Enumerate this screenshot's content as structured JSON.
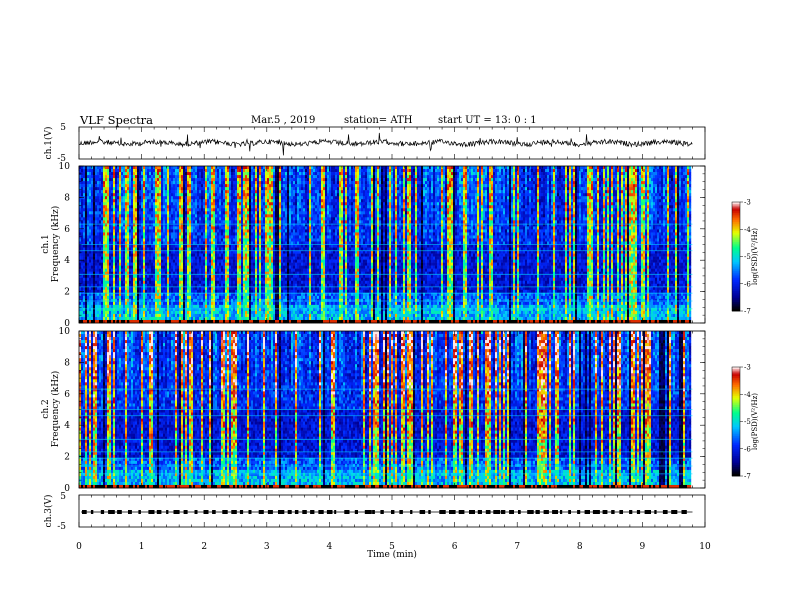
{
  "header": {
    "title": "VLF  Spectra",
    "date": "Mar.5  , 2019",
    "station": "station= ATH",
    "start_ut": "start  UT  =   13: 0  : 1"
  },
  "chart_data": [
    {
      "type": "line",
      "panel": "ch1-waveform",
      "ylabel": "ch.1(V)",
      "ylim": [
        -5,
        5
      ],
      "yticks": [
        "5",
        "-5"
      ],
      "color": "#000000",
      "x_range": [
        0,
        9.8
      ],
      "baseline": 0
    },
    {
      "type": "heatmap",
      "panel": "ch1-spectrogram",
      "ylabel": "ch.1\nFrequency  (kHz)",
      "ylabel_lines": [
        "ch.1",
        "Frequency  (kHz)"
      ],
      "ylim": [
        0,
        10
      ],
      "yticks": [
        "0",
        "2",
        "4",
        "6",
        "8",
        "10"
      ],
      "x_range": [
        0,
        9.8
      ],
      "colorbar": {
        "label": "log(PSD)(V²/Hz)",
        "range": [
          -7,
          -3
        ],
        "ticks": [
          "-3",
          "-4",
          "-5",
          "-6",
          "-7"
        ],
        "colors": [
          "#000000",
          "#0000c8",
          "#0050ff",
          "#00c8ff",
          "#00ff96",
          "#ffff00",
          "#ff6400",
          "#c80000",
          "#ffffff"
        ]
      }
    },
    {
      "type": "heatmap",
      "panel": "ch2-spectrogram",
      "ylabel": "ch.2\nFrequency  (kHz)",
      "ylabel_lines": [
        "ch.2",
        "Frequency  (kHz)"
      ],
      "ylim": [
        0,
        10
      ],
      "yticks": [
        "0",
        "2",
        "4",
        "6",
        "8",
        "10"
      ],
      "x_range": [
        0,
        9.8
      ],
      "colorbar": {
        "label": "log(PSD)(V²/Hz)",
        "range": [
          -7,
          -3
        ],
        "ticks": [
          "-3",
          "-4",
          "-5",
          "-6",
          "-7"
        ],
        "colors": [
          "#000000",
          "#0000c8",
          "#0050ff",
          "#00c8ff",
          "#00ff96",
          "#ffff00",
          "#ff6400",
          "#c80000",
          "#ffffff"
        ]
      }
    },
    {
      "type": "line",
      "panel": "ch3-timing",
      "ylabel": "ch.3(V)",
      "ylim": [
        -5,
        5
      ],
      "yticks": [
        "5",
        "-5"
      ],
      "color": "#000000",
      "x_range": [
        0,
        9.8
      ],
      "level": 0
    }
  ],
  "xaxis": {
    "label": "Time  (min)",
    "ticks": [
      "0",
      "1",
      "2",
      "3",
      "4",
      "5",
      "6",
      "7",
      "8",
      "9",
      "10"
    ],
    "xlim": [
      0,
      10
    ]
  }
}
